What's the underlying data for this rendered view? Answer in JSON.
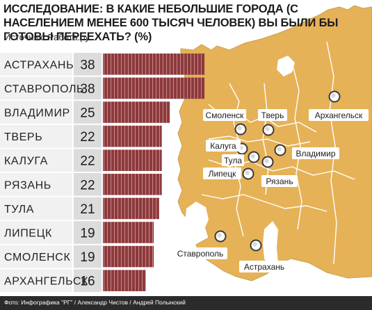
{
  "title": "ИССЛЕДОВАНИЕ: В КАКИЕ НЕБОЛЬШИЕ ГОРОДА  (С НАСЕЛЕНИЕМ МЕНЕЕ 600 ТЫСЯЧ ЧЕЛОВЕК) ВЫ БЫЛИ БЫ ГОТОВЫ ПЕРЕЕХАТЬ? (%)",
  "source": "Источник: Работа.ру",
  "footer": "Фото: Инфографика \"РГ\" / Александр Чистов / Андрей Полынский",
  "colors": {
    "bar": "#8c3a3c",
    "bar_stripe": "#c9898a",
    "row_light": "#f1f1f1",
    "row_dark": "#dcdcdc",
    "map_land": "#e6b257",
    "map_border": "#ffffff",
    "footer_bg": "#2b2b2b"
  },
  "chart_data": {
    "type": "bar",
    "orientation": "horizontal",
    "title": "ИССЛЕДОВАНИЕ: В КАКИЕ НЕБОЛЬШИЕ ГОРОДА  (С НАСЕЛЕНИЕМ МЕНЕЕ 600 ТЫСЯЧ ЧЕЛОВЕК) ВЫ БЫЛИ БЫ ГОТОВЫ ПЕРЕЕХАТЬ? (%)",
    "categories": [
      "АСТРАХАНЬ",
      "СТАВРОПОЛЬ",
      "ВЛАДИМИР",
      "ТВЕРЬ",
      "КАЛУГА",
      "РЯЗАНЬ",
      "ТУЛА",
      "ЛИПЕЦК",
      "СМОЛЕНСК",
      "АРХАНГЕЛЬСК"
    ],
    "values": [
      38,
      38,
      25,
      22,
      22,
      22,
      21,
      19,
      19,
      16
    ],
    "value_labels": [
      "38",
      "38",
      "25",
      "22",
      "22",
      "22",
      "21",
      "19",
      "19",
      "16"
    ],
    "xlim": [
      0,
      40
    ],
    "grid": false,
    "legend": "none"
  },
  "map": {
    "cities": [
      "Смоленск",
      "Тверь",
      "Архангельск",
      "Калуга",
      "Тула",
      "Липецк",
      "Владимир",
      "Рязань",
      "Ставрополь",
      "Астрахань"
    ]
  }
}
